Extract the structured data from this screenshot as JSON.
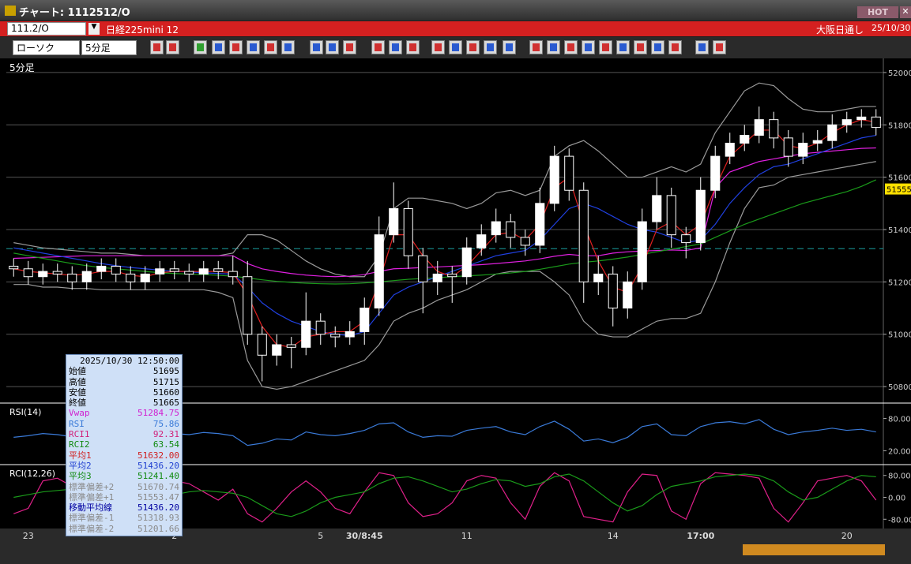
{
  "window": {
    "title": "チャート: 1112512/O",
    "hot": "HOT"
  },
  "header": {
    "code": "111.2/O",
    "instrument": "日経225mini 12",
    "session": "大阪日通し",
    "date": "25/10/30"
  },
  "toolbar": {
    "chart_type": "ローソク",
    "interval": "5分足"
  },
  "chart": {
    "type": "candlestick",
    "interval_label": "5分足",
    "ylim": [
      50740,
      52048
    ],
    "yticks": [
      50800,
      51000,
      51200,
      51400,
      51600,
      51800,
      52000
    ],
    "last_price": 51555,
    "reference_line": 51327,
    "categories": [
      null,
      "23",
      null,
      null,
      null,
      null,
      null,
      null,
      null,
      null,
      null,
      "2",
      null,
      null,
      null,
      null,
      null,
      null,
      null,
      null,
      null,
      "5",
      null,
      null,
      "30/8:45",
      null,
      null,
      null,
      null,
      null,
      null,
      "11",
      null,
      null,
      null,
      null,
      null,
      null,
      null,
      null,
      null,
      "14",
      null,
      null,
      null,
      null,
      null,
      "17:00",
      null,
      null,
      null,
      null,
      null,
      null,
      null,
      null,
      null,
      "20",
      null,
      null
    ],
    "up_color": "#ffffff",
    "down_color": "#000000",
    "candles": [
      [
        51260,
        51290,
        51220,
        51250
      ],
      [
        51250,
        51280,
        51190,
        51220
      ],
      [
        51220,
        51270,
        51190,
        51240
      ],
      [
        51240,
        51270,
        51200,
        51230
      ],
      [
        51230,
        51260,
        51170,
        51200
      ],
      [
        51200,
        51270,
        51170,
        51240
      ],
      [
        51240,
        51290,
        51210,
        51260
      ],
      [
        51260,
        51290,
        51200,
        51230
      ],
      [
        51230,
        51260,
        51170,
        51200
      ],
      [
        51200,
        51260,
        51170,
        51230
      ],
      [
        51230,
        51280,
        51200,
        51250
      ],
      [
        51250,
        51280,
        51210,
        51240
      ],
      [
        51240,
        51270,
        51200,
        51230
      ],
      [
        51230,
        51280,
        51200,
        51250
      ],
      [
        51250,
        51280,
        51210,
        51240
      ],
      [
        51240,
        51300,
        51190,
        51220
      ],
      [
        51220,
        51280,
        50960,
        51000
      ],
      [
        51000,
        51030,
        50820,
        50920
      ],
      [
        50920,
        51000,
        50880,
        50960
      ],
      [
        50960,
        50990,
        50870,
        50950
      ],
      [
        50950,
        51160,
        50920,
        51050
      ],
      [
        51050,
        51080,
        50960,
        51000
      ],
      [
        51000,
        51030,
        50950,
        50990
      ],
      [
        50990,
        51050,
        50960,
        51010
      ],
      [
        51010,
        51140,
        50960,
        51100
      ],
      [
        51100,
        51450,
        51070,
        51380
      ],
      [
        51380,
        51580,
        51350,
        51480
      ],
      [
        51480,
        51510,
        51250,
        51300
      ],
      [
        51300,
        51330,
        51080,
        51200
      ],
      [
        51200,
        51280,
        51150,
        51230
      ],
      [
        51230,
        51260,
        51120,
        51220
      ],
      [
        51220,
        51370,
        51190,
        51330
      ],
      [
        51330,
        51420,
        51300,
        51380
      ],
      [
        51380,
        51480,
        51350,
        51430
      ],
      [
        51430,
        51460,
        51330,
        51370
      ],
      [
        51370,
        51400,
        51300,
        51340
      ],
      [
        51340,
        51560,
        51310,
        51500
      ],
      [
        51500,
        51720,
        51470,
        51680
      ],
      [
        51680,
        51710,
        51510,
        51550
      ],
      [
        51550,
        51580,
        51120,
        51200
      ],
      [
        51200,
        51300,
        51150,
        51230
      ],
      [
        51230,
        51260,
        51030,
        51100
      ],
      [
        51100,
        51240,
        51060,
        51200
      ],
      [
        51200,
        51480,
        51170,
        51430
      ],
      [
        51430,
        51600,
        51400,
        51530
      ],
      [
        51530,
        51560,
        51330,
        51380
      ],
      [
        51380,
        51410,
        51290,
        51350
      ],
      [
        51350,
        51600,
        51320,
        51550
      ],
      [
        51550,
        51720,
        51520,
        51680
      ],
      [
        51680,
        51770,
        51650,
        51730
      ],
      [
        51730,
        51800,
        51700,
        51760
      ],
      [
        51760,
        51870,
        51730,
        51820
      ],
      [
        51820,
        51850,
        51710,
        51750
      ],
      [
        51750,
        51780,
        51640,
        51680
      ],
      [
        51680,
        51770,
        51650,
        51730
      ],
      [
        51730,
        51780,
        51700,
        51740
      ],
      [
        51740,
        51840,
        51710,
        51800
      ],
      [
        51800,
        51850,
        51770,
        51820
      ],
      [
        51820,
        51860,
        51790,
        51830
      ],
      [
        51830,
        51860,
        51760,
        51790
      ]
    ],
    "series": [
      {
        "name": "標準偏差+2",
        "color": "#9a9a9a",
        "values": [
          51350,
          51340,
          51330,
          51325,
          51320,
          51315,
          51310,
          51310,
          51305,
          51300,
          51300,
          51300,
          51300,
          51300,
          51300,
          51310,
          51380,
          51380,
          51360,
          51320,
          51280,
          51250,
          51230,
          51220,
          51220,
          51300,
          51480,
          51520,
          51520,
          51510,
          51500,
          51480,
          51500,
          51540,
          51550,
          51530,
          51550,
          51680,
          51720,
          51740,
          51700,
          51650,
          51600,
          51600,
          51620,
          51640,
          51620,
          51650,
          51770,
          51850,
          51930,
          51960,
          51950,
          51900,
          51860,
          51850,
          51850,
          51860,
          51870,
          51870
        ]
      },
      {
        "name": "標準偏差-2",
        "color": "#9a9a9a",
        "values": [
          51190,
          51190,
          51180,
          51180,
          51175,
          51175,
          51170,
          51170,
          51170,
          51170,
          51170,
          51170,
          51170,
          51170,
          51160,
          51140,
          50900,
          50800,
          50790,
          50800,
          50820,
          50840,
          50860,
          50880,
          50900,
          50960,
          51050,
          51080,
          51100,
          51130,
          51150,
          51170,
          51200,
          51230,
          51240,
          51240,
          51240,
          51200,
          51150,
          51050,
          51000,
          50990,
          50990,
          51020,
          51050,
          51060,
          51060,
          51080,
          51200,
          51350,
          51480,
          51560,
          51570,
          51600,
          51610,
          51620,
          51630,
          51640,
          51650,
          51660
        ]
      },
      {
        "name": "Vwap",
        "color": "#e020e0",
        "values": [
          51290,
          51292,
          51294,
          51296,
          51298,
          51300,
          51300,
          51300,
          51300,
          51300,
          51300,
          51300,
          51300,
          51300,
          51300,
          51300,
          51270,
          51250,
          51240,
          51232,
          51226,
          51222,
          51220,
          51222,
          51228,
          51240,
          51250,
          51252,
          51255,
          51257,
          51260,
          51263,
          51266,
          51270,
          51275,
          51280,
          51288,
          51298,
          51305,
          51300,
          51300,
          51310,
          51315,
          51318,
          51320,
          51322,
          51320,
          51330,
          51560,
          51620,
          51640,
          51660,
          51670,
          51680,
          51690,
          51695,
          51700,
          51705,
          51710,
          51712
        ]
      },
      {
        "name": "平均3",
        "color": "#1a9a1a",
        "values": [
          51310,
          51300,
          51290,
          51280,
          51270,
          51262,
          51255,
          51250,
          51245,
          51240,
          51235,
          51232,
          51230,
          51228,
          51225,
          51222,
          51215,
          51208,
          51202,
          51198,
          51195,
          51193,
          51192,
          51193,
          51196,
          51200,
          51205,
          51210,
          51213,
          51216,
          51220,
          51223,
          51226,
          51230,
          51234,
          51240,
          51248,
          51258,
          51268,
          51275,
          51280,
          51287,
          51295,
          51305,
          51315,
          51325,
          51335,
          51345,
          51370,
          51395,
          51420,
          51440,
          51460,
          51480,
          51500,
          51515,
          51530,
          51545,
          51565,
          51590
        ]
      },
      {
        "name": "平均2",
        "color": "#2040e0",
        "values": [
          51330,
          51320,
          51310,
          51300,
          51290,
          51280,
          51270,
          51262,
          51255,
          51250,
          51245,
          51240,
          51238,
          51235,
          51232,
          51230,
          51180,
          51120,
          51080,
          51050,
          51030,
          51010,
          51000,
          50995,
          51010,
          51080,
          51150,
          51180,
          51200,
          51220,
          51240,
          51260,
          51280,
          51300,
          51310,
          51320,
          51360,
          51420,
          51480,
          51500,
          51480,
          51450,
          51420,
          51400,
          51390,
          51370,
          51350,
          51360,
          51420,
          51500,
          51560,
          51610,
          51640,
          51650,
          51670,
          51690,
          51710,
          51730,
          51750,
          51760
        ]
      },
      {
        "name": "平均1",
        "color": "#e02020",
        "values": [
          51250,
          51240,
          51235,
          51230,
          51225,
          51230,
          51240,
          51240,
          51225,
          51220,
          51235,
          51240,
          51240,
          51240,
          51240,
          51235,
          51150,
          51030,
          50960,
          50950,
          50990,
          51000,
          51010,
          51010,
          51050,
          51200,
          51380,
          51380,
          51300,
          51240,
          51220,
          51260,
          51320,
          51380,
          51390,
          51360,
          51420,
          51560,
          51600,
          51420,
          51280,
          51180,
          51160,
          51260,
          51400,
          51430,
          51380,
          51420,
          51560,
          51680,
          51730,
          51780,
          51780,
          51720,
          51710,
          51730,
          51770,
          51800,
          51820,
          51810
        ]
      }
    ]
  },
  "rsi": {
    "label": "RSI(14)",
    "ylim": [
      -4.3,
      104.3
    ],
    "yticks": [
      {
        "value": 20,
        "label": "20.00"
      },
      {
        "value": 80,
        "label": "80.00"
      }
    ],
    "series": [
      {
        "name": "RSI",
        "color": "#3a7ad8",
        "values": [
          45,
          48,
          52,
          50,
          46,
          50,
          55,
          52,
          48,
          50,
          53,
          52,
          50,
          54,
          52,
          48,
          30,
          34,
          42,
          40,
          55,
          50,
          48,
          52,
          58,
          70,
          72,
          55,
          45,
          48,
          47,
          58,
          62,
          65,
          55,
          50,
          65,
          75,
          60,
          38,
          42,
          35,
          45,
          65,
          70,
          50,
          48,
          65,
          72,
          74,
          70,
          78,
          60,
          50,
          55,
          58,
          62,
          58,
          60,
          55
        ]
      }
    ]
  },
  "rci": {
    "label": "RCI(12,26)",
    "ylim": [
      -108,
      110.9
    ],
    "yticks": [
      {
        "value": -80,
        "label": "-80.00"
      },
      {
        "value": 0,
        "label": "0.00"
      },
      {
        "value": 80,
        "label": "80.00"
      }
    ],
    "series": [
      {
        "name": "RCI1",
        "color": "#e0208a",
        "values": [
          -60,
          -40,
          60,
          70,
          40,
          -20,
          10,
          40,
          20,
          -30,
          10,
          60,
          50,
          20,
          -10,
          30,
          -60,
          -90,
          -40,
          20,
          60,
          20,
          -40,
          -60,
          20,
          90,
          80,
          -20,
          -70,
          -60,
          -20,
          60,
          80,
          70,
          -20,
          -80,
          40,
          90,
          60,
          -70,
          -80,
          -90,
          20,
          85,
          80,
          -50,
          -80,
          50,
          90,
          85,
          80,
          70,
          -40,
          -90,
          -20,
          60,
          70,
          80,
          60,
          -10
        ]
      },
      {
        "name": "RCI2",
        "color": "#1a9a1a",
        "values": [
          0,
          10,
          20,
          25,
          30,
          20,
          10,
          15,
          20,
          10,
          0,
          10,
          20,
          25,
          20,
          15,
          0,
          -30,
          -60,
          -70,
          -50,
          -20,
          0,
          10,
          20,
          50,
          70,
          75,
          60,
          40,
          20,
          30,
          50,
          65,
          60,
          40,
          50,
          75,
          85,
          60,
          20,
          -20,
          -50,
          -30,
          10,
          40,
          50,
          60,
          75,
          80,
          85,
          80,
          60,
          20,
          -10,
          0,
          30,
          60,
          80,
          75
        ]
      }
    ]
  },
  "info": {
    "datetime": "2025/10/30 12:50:00",
    "rows": [
      {
        "label": "始値",
        "value": 51695,
        "color": "#000000"
      },
      {
        "label": "高値",
        "value": 51715,
        "color": "#000000"
      },
      {
        "label": "安値",
        "value": 51660,
        "color": "#000000"
      },
      {
        "label": "終値",
        "value": 51665,
        "color": "#000000"
      },
      {
        "label": "Vwap",
        "value": 51284.75,
        "color": "#d020d0"
      },
      {
        "label": "RSI",
        "value": 75.86,
        "color": "#3a7ad8"
      },
      {
        "label": "RCI1",
        "value": 92.31,
        "color": "#d0207a"
      },
      {
        "label": "RCI2",
        "value": 63.54,
        "color": "#108a10"
      },
      {
        "label": "平均1",
        "value": 51632.0,
        "value_label": "51632.00",
        "color": "#d02020"
      },
      {
        "label": "平均2",
        "value": 51436.2,
        "value_label": "51436.20",
        "color": "#2040d0"
      },
      {
        "label": "平均3",
        "value": 51241.4,
        "value_label": "51241.40",
        "color": "#108a10"
      },
      {
        "label": "標準偏差+2",
        "value": 51670.74,
        "color": "#8a8a8a"
      },
      {
        "label": "標準偏差+1",
        "value": 51553.47,
        "color": "#8a8a8a"
      },
      {
        "label": "移動平均線",
        "value": 51436.2,
        "value_label": "51436.20",
        "color": "#0000a0"
      },
      {
        "label": "標準偏差-1",
        "value": 51318.93,
        "color": "#8a8a8a"
      },
      {
        "label": "標準偏差-2",
        "value": 51201.66,
        "color": "#8a8a8a"
      }
    ]
  }
}
